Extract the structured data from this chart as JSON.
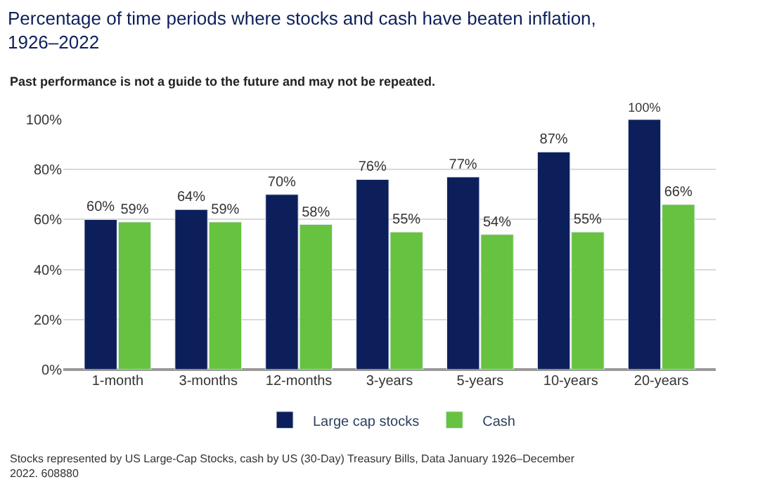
{
  "chart_data": {
    "type": "bar",
    "title": "Percentage of time periods where stocks and cash have beaten inflation, 1926–2022",
    "subtitle": "Past performance is not a guide to the future and may not be repeated.",
    "categories": [
      "1-month",
      "3-months",
      "12-months",
      "3-years",
      "5-years",
      "10-years",
      "20-years"
    ],
    "series": [
      {
        "name": "Large cap stocks",
        "color": "#0c1f5b",
        "values": [
          60,
          64,
          70,
          76,
          77,
          87,
          100
        ],
        "value_labels": [
          "60%",
          "64%",
          "70%",
          "76%",
          "77%",
          "87%",
          "100%"
        ]
      },
      {
        "name": "Cash",
        "color": "#66c23f",
        "values": [
          59,
          59,
          58,
          55,
          54,
          55,
          66
        ],
        "value_labels": [
          "59%",
          "59%",
          "58%",
          "55%",
          "54%",
          "55%",
          "66%"
        ]
      }
    ],
    "ylim": [
      0,
      100
    ],
    "yticks": [
      {
        "value": 0,
        "label": "0%"
      },
      {
        "value": 20,
        "label": "20%"
      },
      {
        "value": 40,
        "label": "40%"
      },
      {
        "value": 60,
        "label": "60%"
      },
      {
        "value": 80,
        "label": "80%"
      },
      {
        "value": 100,
        "label": "100%"
      }
    ],
    "grid": "y",
    "legend": "bottom",
    "annotations": [
      "Stocks represented by US Large-Cap Stocks, cash by US (30-Day) Treasury Bills, Data January 1926–December 2022. 608880"
    ]
  }
}
